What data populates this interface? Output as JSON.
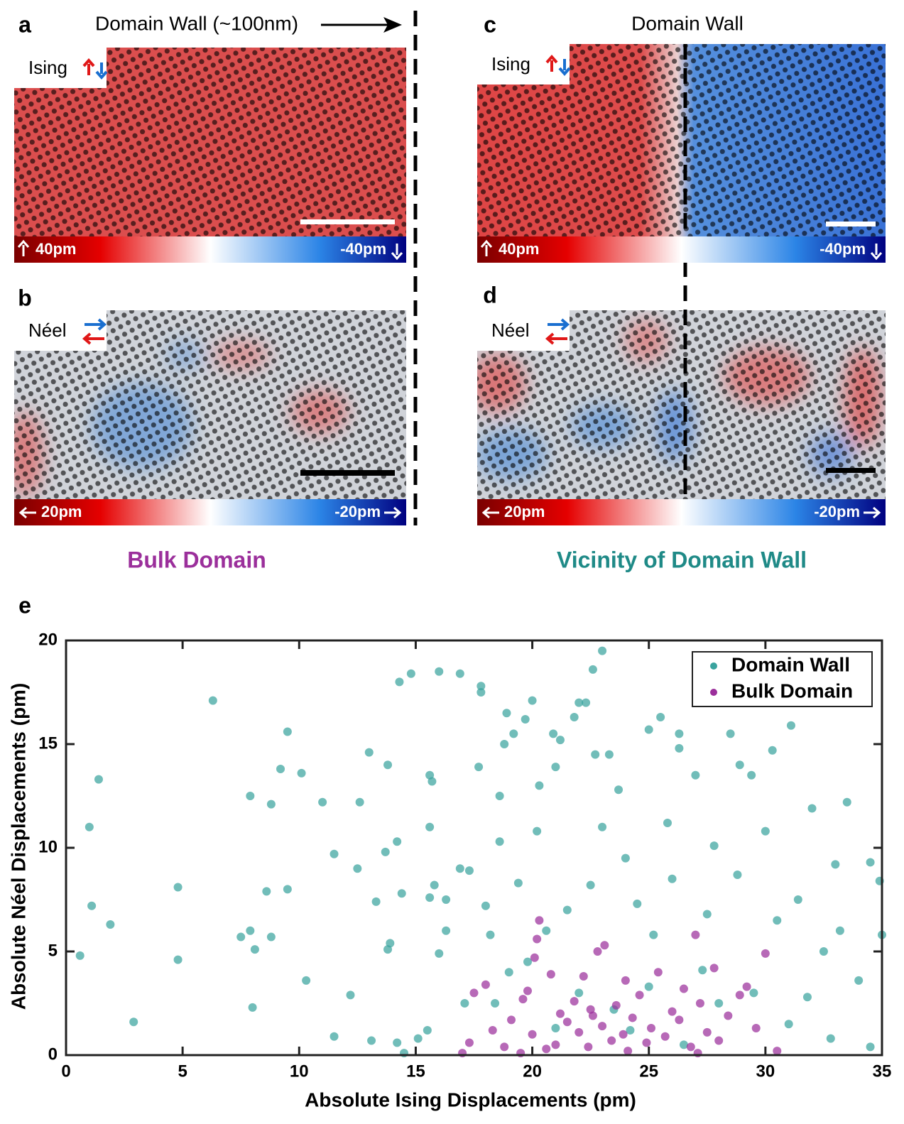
{
  "panels": [
    {
      "label": "a",
      "title": "Domain Wall (~100nm)",
      "inset": "Ising",
      "colorbar": [
        "40pm",
        "-40pm"
      ]
    },
    {
      "label": "b",
      "inset": "Néel",
      "colorbar": [
        "20pm",
        "-20pm"
      ]
    },
    {
      "label": "c",
      "title": "Domain Wall",
      "inset": "Ising",
      "colorbar": [
        "40pm",
        "-40pm"
      ]
    },
    {
      "label": "d",
      "inset": "Néel",
      "colorbar": [
        "20pm",
        "-20pm"
      ]
    }
  ],
  "captions": [
    "Bulk Domain",
    "Vicinity of Domain Wall"
  ],
  "chart_data": {
    "type": "scatter",
    "panel_label": "e",
    "xlabel": "Absolute Ising Displacements (pm)",
    "ylabel": "Absolute Néel Displacements (pm)",
    "xlim": [
      0,
      35
    ],
    "ylim": [
      0,
      20
    ],
    "xticks": [
      0,
      5,
      10,
      15,
      20,
      25,
      30,
      35
    ],
    "yticks": [
      0,
      5,
      10,
      15,
      20
    ],
    "legend": "upper right",
    "series": [
      {
        "name": "Domain Wall",
        "color": "#3aa39e",
        "x": [
          0.6,
          1.0,
          1.1,
          1.4,
          1.9,
          2.9,
          4.8,
          4.8,
          6.3,
          7.5,
          7.9,
          7.9,
          8.0,
          8.1,
          8.6,
          8.8,
          8.8,
          9.2,
          9.5,
          9.5,
          10.1,
          10.3,
          11.0,
          11.5,
          11.5,
          12.2,
          12.5,
          12.6,
          13.0,
          13.1,
          13.3,
          13.7,
          13.8,
          13.8,
          13.9,
          14.2,
          14.2,
          14.3,
          14.4,
          14.5,
          14.8,
          15.1,
          15.5,
          15.6,
          15.6,
          15.6,
          15.7,
          15.8,
          16.0,
          16.0,
          16.3,
          16.3,
          16.9,
          16.9,
          17.1,
          17.3,
          17.7,
          17.8,
          17.8,
          18.0,
          18.2,
          18.4,
          18.6,
          18.6,
          18.8,
          18.9,
          19.0,
          19.2,
          19.4,
          19.7,
          19.8,
          20.0,
          20.2,
          20.3,
          20.6,
          20.9,
          21.0,
          21.2,
          21.5,
          21.8,
          22.0,
          22.3,
          22.5,
          22.6,
          22.7,
          23.0,
          23.0,
          23.3,
          23.7,
          24.0,
          24.5,
          25.0,
          25.0,
          25.5,
          25.8,
          26.0,
          26.3,
          26.3,
          27.0,
          27.3,
          27.8,
          28.5,
          28.9,
          29.4,
          29.8,
          30.0,
          30.3,
          31.1,
          31.4,
          32.0,
          32.5,
          33.0,
          33.5,
          34.0,
          34.5,
          34.9,
          35.0,
          24.2,
          26.5,
          28.0,
          29.5,
          31.0,
          32.8,
          34.5,
          22.0,
          23.5,
          27.5,
          30.5,
          33.2,
          21.0,
          25.2,
          28.8,
          31.8
        ],
        "values": [
          4.8,
          11.0,
          7.2,
          13.3,
          6.3,
          1.6,
          8.1,
          4.6,
          17.1,
          5.7,
          12.5,
          6.0,
          2.3,
          5.1,
          7.9,
          12.1,
          5.7,
          13.8,
          15.6,
          8.0,
          13.6,
          3.6,
          12.2,
          9.7,
          0.9,
          2.9,
          9.0,
          12.2,
          14.6,
          0.7,
          7.4,
          9.8,
          14.0,
          5.1,
          5.4,
          10.3,
          0.6,
          18.0,
          7.8,
          0.1,
          18.4,
          0.8,
          1.2,
          13.5,
          11.0,
          7.6,
          13.2,
          8.2,
          18.5,
          4.9,
          7.5,
          6.0,
          18.4,
          9.0,
          2.5,
          8.9,
          13.9,
          17.8,
          17.5,
          7.2,
          5.8,
          2.5,
          10.3,
          12.5,
          15.0,
          16.5,
          4.0,
          15.5,
          8.3,
          16.2,
          4.5,
          17.1,
          10.8,
          13.0,
          6.0,
          15.5,
          13.9,
          15.2,
          7.0,
          16.3,
          17.0,
          17.0,
          8.2,
          18.6,
          14.5,
          11.0,
          19.5,
          14.5,
          12.8,
          9.5,
          7.3,
          15.7,
          3.3,
          16.3,
          11.2,
          8.5,
          14.8,
          15.5,
          13.5,
          4.1,
          10.1,
          15.5,
          14.0,
          13.5,
          17.0,
          10.8,
          14.7,
          15.9,
          7.5,
          11.9,
          5.0,
          9.2,
          12.2,
          3.6,
          9.3,
          8.4,
          5.8,
          1.2,
          0.5,
          2.5,
          3.0,
          1.5,
          0.8,
          0.4,
          3.0,
          2.2,
          6.8,
          6.5,
          6.0,
          1.3,
          5.8,
          8.7,
          2.8
        ]
      },
      {
        "name": "Bulk Domain",
        "color": "#9b2f9b",
        "x": [
          17.0,
          17.3,
          17.5,
          18.0,
          18.3,
          18.8,
          19.1,
          19.5,
          19.6,
          19.8,
          20.0,
          20.1,
          20.2,
          20.3,
          20.6,
          20.8,
          21.0,
          21.2,
          21.5,
          21.8,
          22.0,
          22.2,
          22.4,
          22.6,
          22.8,
          23.0,
          23.1,
          23.4,
          23.6,
          23.9,
          24.1,
          24.3,
          24.6,
          24.9,
          25.1,
          25.4,
          25.7,
          26.0,
          26.3,
          26.5,
          26.8,
          27.0,
          27.2,
          27.5,
          27.8,
          28.0,
          28.4,
          28.9,
          29.2,
          29.6,
          30.0,
          30.5,
          27.1,
          24.0,
          22.5
        ],
        "values": [
          0.1,
          0.6,
          3.0,
          3.4,
          1.2,
          0.4,
          1.7,
          0.1,
          2.7,
          3.1,
          1.0,
          4.7,
          5.6,
          6.5,
          0.3,
          3.9,
          0.5,
          2.0,
          1.6,
          2.6,
          1.1,
          3.8,
          0.4,
          1.9,
          5.0,
          1.4,
          5.3,
          0.7,
          2.4,
          1.0,
          0.2,
          1.8,
          2.9,
          0.6,
          1.3,
          4.0,
          0.9,
          2.1,
          1.7,
          3.2,
          0.4,
          5.8,
          2.5,
          1.1,
          4.2,
          0.7,
          1.9,
          2.9,
          3.3,
          1.3,
          4.9,
          0.2,
          0.1,
          3.6,
          2.2
        ]
      }
    ]
  }
}
